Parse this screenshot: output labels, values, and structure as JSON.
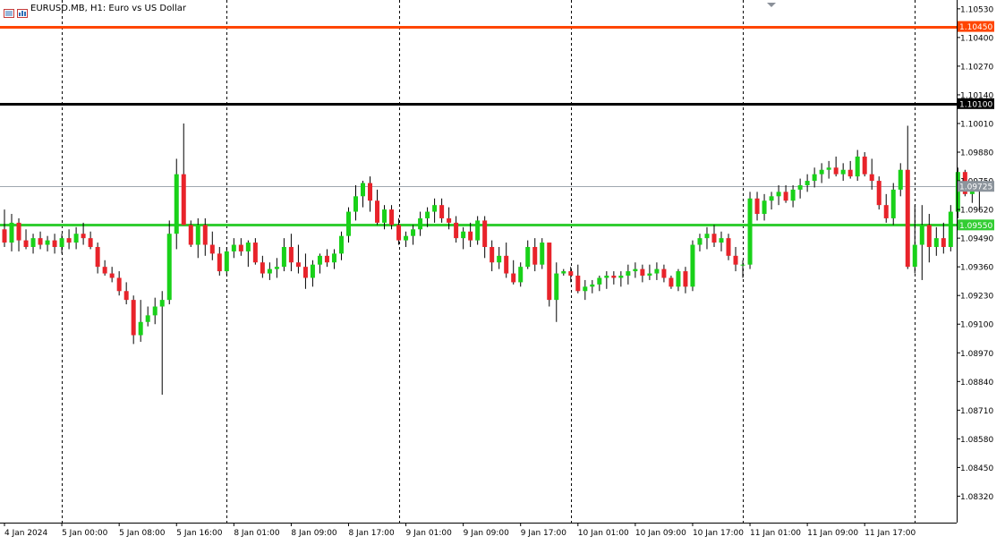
{
  "window": {
    "symbol": "EURUSD.MB",
    "timeframe": "H1:",
    "description": "Euro vs US Dollar",
    "title_text": "EURUSD.MB, H1:  Euro vs US Dollar"
  },
  "icons": [
    "chart-properties-icon",
    "symbol-info-icon",
    "scroll-marker-icon"
  ],
  "colors": {
    "bull": "#19d119",
    "bear": "#e8232a",
    "wick": "#000000",
    "orange_line": "#ff4500",
    "black_line": "#000000",
    "green_line": "#32cd32",
    "bid_line": "#a0a8b0",
    "grid": "#000000",
    "background": "#ffffff"
  },
  "chart_data": {
    "type": "candlestick",
    "symbol": "EURUSD.MB",
    "timeframe": "H1",
    "ylim": [
      1.082,
      1.1057
    ],
    "y_ticks": [
      "1.10530",
      "1.10400",
      "1.10270",
      "1.10140",
      "1.10010",
      "1.09880",
      "1.09750",
      "1.09620",
      "1.09490",
      "1.09360",
      "1.09230",
      "1.09100",
      "1.08970",
      "1.08840",
      "1.08710",
      "1.08580",
      "1.08450",
      "1.08320"
    ],
    "x_labels": [
      {
        "text": "4 Jan 2024",
        "bar": 0
      },
      {
        "text": "5 Jan 00:00",
        "bar": 8
      },
      {
        "text": "5 Jan 08:00",
        "bar": 16
      },
      {
        "text": "5 Jan 16:00",
        "bar": 24
      },
      {
        "text": "8 Jan 01:00",
        "bar": 32
      },
      {
        "text": "8 Jan 09:00",
        "bar": 40
      },
      {
        "text": "8 Jan 17:00",
        "bar": 48
      },
      {
        "text": "9 Jan 01:00",
        "bar": 56
      },
      {
        "text": "9 Jan 09:00",
        "bar": 64
      },
      {
        "text": "9 Jan 17:00",
        "bar": 72
      },
      {
        "text": "10 Jan 01:00",
        "bar": 80
      },
      {
        "text": "10 Jan 09:00",
        "bar": 88
      },
      {
        "text": "10 Jan 17:00",
        "bar": 96
      },
      {
        "text": "11 Jan 01:00",
        "bar": 104
      },
      {
        "text": "11 Jan 09:00",
        "bar": 112
      },
      {
        "text": "11 Jan 17:00",
        "bar": 120
      }
    ],
    "period_separators": [
      8,
      31,
      55,
      79,
      103,
      127
    ],
    "horizontal_lines": [
      {
        "price": 1.1045,
        "label": "1.10450",
        "color": "#ff4500"
      },
      {
        "price": 1.101,
        "label": "1.10100",
        "color": "#000000"
      },
      {
        "price": 1.0955,
        "label": "1.09550",
        "color": "#32cd32"
      }
    ],
    "bid": {
      "price": 1.09725,
      "label": "1.09725"
    },
    "candles": [
      [
        1.0953,
        1.0962,
        1.0945,
        1.0947
      ],
      [
        1.0947,
        1.096,
        1.0943,
        1.0956
      ],
      [
        1.0956,
        1.0958,
        1.0943,
        1.0948
      ],
      [
        1.0948,
        1.0953,
        1.0944,
        1.0945
      ],
      [
        1.0945,
        1.0951,
        1.0942,
        1.0949
      ],
      [
        1.0949,
        1.0952,
        1.0944,
        1.0946
      ],
      [
        1.0946,
        1.095,
        1.0943,
        1.0948
      ],
      [
        1.0948,
        1.0951,
        1.0942,
        1.0945
      ],
      [
        1.0945,
        1.0951,
        1.0942,
        1.0949
      ],
      [
        1.0949,
        1.0953,
        1.0944,
        1.0947
      ],
      [
        1.0947,
        1.0954,
        1.0944,
        1.0951
      ],
      [
        1.0951,
        1.0956,
        1.0946,
        1.0949
      ],
      [
        1.0949,
        1.0952,
        1.0944,
        1.0945
      ],
      [
        1.0945,
        1.0947,
        1.0933,
        1.0936
      ],
      [
        1.0936,
        1.0939,
        1.0932,
        1.0933
      ],
      [
        1.0933,
        1.0936,
        1.0929,
        1.0931
      ],
      [
        1.0931,
        1.0934,
        1.0923,
        1.0925
      ],
      [
        1.0925,
        1.0929,
        1.0919,
        1.0921
      ],
      [
        1.0921,
        1.0923,
        1.0901,
        1.0905
      ],
      [
        1.0905,
        1.0921,
        1.0902,
        1.0911
      ],
      [
        1.0911,
        1.0918,
        1.0909,
        1.0914
      ],
      [
        1.0914,
        1.0922,
        1.091,
        1.0918
      ],
      [
        1.0918,
        1.0925,
        1.0878,
        1.0921
      ],
      [
        1.0921,
        1.0957,
        1.0919,
        1.0951
      ],
      [
        1.0951,
        1.0985,
        1.0944,
        1.0978
      ],
      [
        1.0978,
        1.1001,
        1.0955,
        1.0955
      ],
      [
        1.0955,
        1.0957,
        1.0945,
        1.0946
      ],
      [
        1.0946,
        1.0958,
        1.094,
        1.0955
      ],
      [
        1.0955,
        1.0958,
        1.0941,
        1.0946
      ],
      [
        1.0946,
        1.0952,
        1.0939,
        1.0942
      ],
      [
        1.0942,
        1.0945,
        1.0932,
        1.0934
      ],
      [
        1.0934,
        1.0945,
        1.0932,
        1.0943
      ],
      [
        1.0943,
        1.0949,
        1.094,
        1.0946
      ],
      [
        1.0946,
        1.0949,
        1.0941,
        1.0943
      ],
      [
        1.0943,
        1.0948,
        1.0936,
        1.0947
      ],
      [
        1.0947,
        1.0949,
        1.0937,
        1.0938
      ],
      [
        1.0938,
        1.0941,
        1.0931,
        1.0933
      ],
      [
        1.0933,
        1.0938,
        1.093,
        1.0935
      ],
      [
        1.0935,
        1.094,
        1.0931,
        1.0936
      ],
      [
        1.0936,
        1.0949,
        1.0934,
        1.0945
      ],
      [
        1.0945,
        1.0951,
        1.0934,
        1.0938
      ],
      [
        1.0938,
        1.0946,
        1.0933,
        1.0936
      ],
      [
        1.0936,
        1.0942,
        1.0926,
        1.0931
      ],
      [
        1.0931,
        1.0939,
        1.0927,
        1.0937
      ],
      [
        1.0937,
        1.0942,
        1.0933,
        1.0941
      ],
      [
        1.0941,
        1.0944,
        1.0936,
        1.0938
      ],
      [
        1.0938,
        1.0944,
        1.0935,
        1.0942
      ],
      [
        1.0942,
        1.0952,
        1.0939,
        1.095
      ],
      [
        1.095,
        1.0963,
        1.0947,
        1.0961
      ],
      [
        1.0961,
        1.0973,
        1.0957,
        1.0968
      ],
      [
        1.0968,
        1.0975,
        1.0963,
        1.0974
      ],
      [
        1.0974,
        1.0977,
        1.0961,
        1.0966
      ],
      [
        1.0966,
        1.0971,
        1.0955,
        1.0956
      ],
      [
        1.0956,
        1.0964,
        1.0953,
        1.0962
      ],
      [
        1.0962,
        1.0964,
        1.0953,
        1.0955
      ],
      [
        1.0955,
        1.0958,
        1.0946,
        1.0948
      ],
      [
        1.0948,
        1.0952,
        1.0945,
        1.095
      ],
      [
        1.095,
        1.0955,
        1.0946,
        1.0953
      ],
      [
        1.0953,
        1.0961,
        1.095,
        1.0958
      ],
      [
        1.0958,
        1.0963,
        1.0954,
        1.0961
      ],
      [
        1.0961,
        1.0967,
        1.0956,
        1.0964
      ],
      [
        1.0964,
        1.0967,
        1.0956,
        1.0958
      ],
      [
        1.0958,
        1.0963,
        1.0953,
        1.0956
      ],
      [
        1.0956,
        1.0959,
        1.0947,
        1.0949
      ],
      [
        1.0949,
        1.0954,
        1.0944,
        1.0952
      ],
      [
        1.0952,
        1.0956,
        1.0945,
        1.0948
      ],
      [
        1.0948,
        1.0959,
        1.0946,
        1.0957
      ],
      [
        1.0957,
        1.0959,
        1.094,
        1.0945
      ],
      [
        1.0945,
        1.0948,
        1.0934,
        1.0938
      ],
      [
        1.0938,
        1.0945,
        1.0935,
        1.0941
      ],
      [
        1.0941,
        1.0947,
        1.0931,
        1.0933
      ],
      [
        1.0933,
        1.0939,
        1.0928,
        1.0929
      ],
      [
        1.0929,
        1.0938,
        1.0927,
        1.0936
      ],
      [
        1.0936,
        1.0948,
        1.0935,
        1.0945
      ],
      [
        1.0945,
        1.0949,
        1.0934,
        1.0937
      ],
      [
        1.0937,
        1.0949,
        1.0935,
        1.0947
      ],
      [
        1.0947,
        1.0947,
        1.0918,
        1.0921
      ],
      [
        1.0921,
        1.0938,
        1.0911,
        1.0933
      ],
      [
        1.0933,
        1.0935,
        1.0932,
        1.0934
      ],
      [
        1.0934,
        1.0936,
        1.0929,
        1.0932
      ],
      [
        1.0932,
        1.0937,
        1.0924,
        1.0925
      ],
      [
        1.0925,
        1.093,
        1.0921,
        1.0927
      ],
      [
        1.0927,
        1.093,
        1.0924,
        1.0928
      ],
      [
        1.0928,
        1.0932,
        1.0925,
        1.0931
      ],
      [
        1.0931,
        1.0934,
        1.0926,
        1.0932
      ],
      [
        1.0932,
        1.0934,
        1.0928,
        1.0931
      ],
      [
        1.0931,
        1.0934,
        1.0927,
        1.0932
      ],
      [
        1.0932,
        1.0937,
        1.0928,
        1.0934
      ],
      [
        1.0934,
        1.0938,
        1.0931,
        1.0935
      ],
      [
        1.0935,
        1.0937,
        1.0929,
        1.0932
      ],
      [
        1.0932,
        1.0937,
        1.093,
        1.0933
      ],
      [
        1.0933,
        1.0938,
        1.093,
        1.0935
      ],
      [
        1.0935,
        1.0937,
        1.0929,
        1.0931
      ],
      [
        1.0931,
        1.0932,
        1.0926,
        1.0927
      ],
      [
        1.0927,
        1.0935,
        1.0925,
        1.0934
      ],
      [
        1.0934,
        1.0936,
        1.0924,
        1.0927
      ],
      [
        1.0927,
        1.0948,
        1.0925,
        1.0946
      ],
      [
        1.0946,
        1.0951,
        1.0943,
        1.0949
      ],
      [
        1.0949,
        1.0954,
        1.0944,
        1.0951
      ],
      [
        1.0951,
        1.0955,
        1.0945,
        1.0947
      ],
      [
        1.0947,
        1.0952,
        1.0943,
        1.0949
      ],
      [
        1.0949,
        1.0951,
        1.0939,
        1.0941
      ],
      [
        1.0941,
        1.0945,
        1.0934,
        1.0937
      ],
      [
        1.0937,
        1.0939,
        1.0931,
        1.0937
      ],
      [
        1.0937,
        1.097,
        1.0935,
        1.0967
      ],
      [
        1.0967,
        1.097,
        1.0957,
        1.096
      ],
      [
        1.096,
        1.0969,
        1.0957,
        1.0966
      ],
      [
        1.0966,
        1.097,
        1.0962,
        1.0968
      ],
      [
        1.0968,
        1.0973,
        1.0964,
        1.097
      ],
      [
        1.097,
        1.0973,
        1.0965,
        1.0966
      ],
      [
        1.0966,
        1.0973,
        1.0963,
        1.0971
      ],
      [
        1.0971,
        1.0976,
        1.0967,
        1.0973
      ],
      [
        1.0973,
        1.0978,
        1.097,
        1.0975
      ],
      [
        1.0975,
        1.0981,
        1.0972,
        1.0978
      ],
      [
        1.0978,
        1.0983,
        1.0974,
        1.098
      ],
      [
        1.098,
        1.0984,
        1.0976,
        1.0981
      ],
      [
        1.0981,
        1.0986,
        1.0977,
        1.0978
      ],
      [
        1.0978,
        1.0983,
        1.0975,
        1.098
      ],
      [
        1.098,
        1.0984,
        1.0976,
        1.0977
      ],
      [
        1.0977,
        1.0989,
        1.0975,
        1.0986
      ],
      [
        1.0986,
        1.0988,
        1.0977,
        1.0978
      ],
      [
        1.0978,
        1.0985,
        1.0971,
        1.0975
      ],
      [
        1.0975,
        1.0977,
        1.0962,
        1.0964
      ],
      [
        1.0964,
        1.0969,
        1.0956,
        1.0958
      ],
      [
        1.0958,
        1.0974,
        1.0955,
        1.0971
      ],
      [
        1.0971,
        1.0983,
        1.0968,
        1.098
      ],
      [
        1.098,
        1.1,
        1.0935,
        1.0936
      ],
      [
        1.0936,
        1.0964,
        1.0933,
        1.0946
      ],
      [
        1.0946,
        1.0964,
        1.093,
        1.0955
      ],
      [
        1.0955,
        1.096,
        1.0938,
        1.0945
      ],
      [
        1.0945,
        1.0954,
        1.0941,
        1.0949
      ],
      [
        1.0949,
        1.0956,
        1.0942,
        1.0945
      ],
      [
        1.0945,
        1.0964,
        1.0943,
        1.0961
      ],
      [
        1.0961,
        1.0981,
        1.0958,
        1.0979
      ],
      [
        1.0979,
        1.098,
        1.0968,
        1.0969
      ],
      [
        1.0969,
        1.0975,
        1.0965,
        1.0973
      ],
      [
        1.0973,
        1.0974,
        1.0962,
        1.0972
      ]
    ]
  }
}
